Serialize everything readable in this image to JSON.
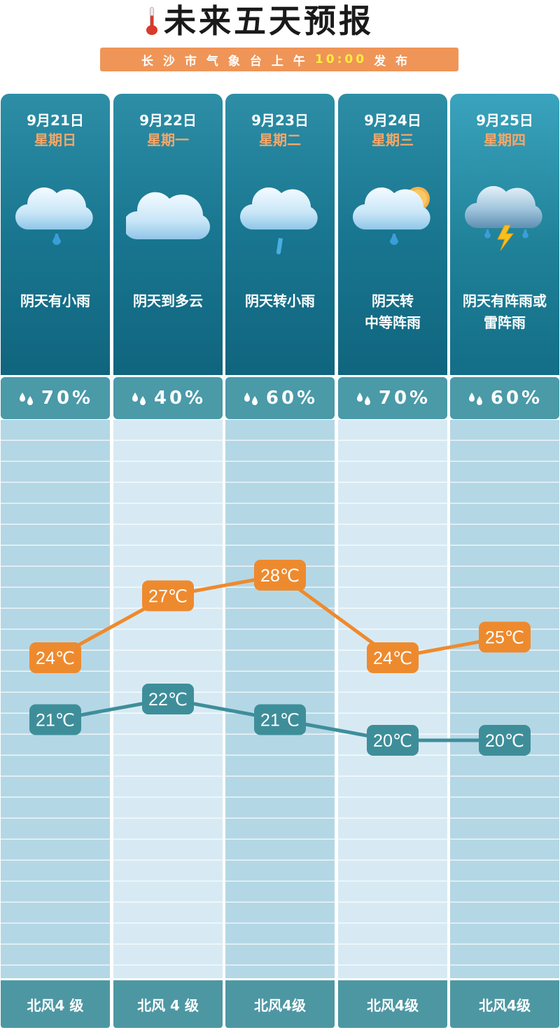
{
  "header": {
    "title": "未来五天预报",
    "subtitle_prefix": "长沙市气象台上午",
    "subtitle_time": "10:00",
    "subtitle_suffix": "发布"
  },
  "days": [
    {
      "date": "9月21日",
      "weekday": "星期日",
      "icon": "cloud-light-rain-icon",
      "desc": "阴天有小雨",
      "rain_prob": "70%",
      "wind": "北风4 级"
    },
    {
      "date": "9月22日",
      "weekday": "星期一",
      "icon": "cloud-icon",
      "desc": "阴天到多云",
      "rain_prob": "40%",
      "wind": "北风 4 级"
    },
    {
      "date": "9月23日",
      "weekday": "星期二",
      "icon": "cloud-rain-streak-icon",
      "desc": "阴天转小雨",
      "rain_prob": "60%",
      "wind": "北风4级"
    },
    {
      "date": "9月24日",
      "weekday": "星期三",
      "icon": "cloud-sun-rain-icon",
      "desc": "阴天转中等阵雨",
      "desc_lines": [
        "阴天转",
        "中等阵雨"
      ],
      "rain_prob": "70%",
      "wind": "北风4级"
    },
    {
      "date": "9月25日",
      "weekday": "星期四",
      "icon": "thunderstorm-icon",
      "desc": "阴天有阵雨或雷阵雨",
      "desc_lines": [
        "阴天有阵雨或",
        "雷阵雨"
      ],
      "rain_prob": "60%",
      "wind": "北风4级"
    }
  ],
  "chart_data": {
    "type": "line",
    "categories": [
      "9月21日",
      "9月22日",
      "9月23日",
      "9月24日",
      "9月25日"
    ],
    "series": [
      {
        "values": [
          24,
          27,
          28,
          24,
          25
        ],
        "labels": [
          "24℃",
          "27℃",
          "28℃",
          "24℃",
          "25℃"
        ],
        "color": "#ee8a2e"
      },
      {
        "values": [
          21,
          22,
          21,
          20,
          20
        ],
        "labels": [
          "21℃",
          "22℃",
          "21℃",
          "20℃",
          "20℃"
        ],
        "color": "#3e8e9a"
      }
    ]
  },
  "colors": {
    "accent_orange": "#ee8a2e",
    "accent_teal": "#3e8e9a",
    "card_teal": "#197690",
    "banner": "#ef9558"
  }
}
